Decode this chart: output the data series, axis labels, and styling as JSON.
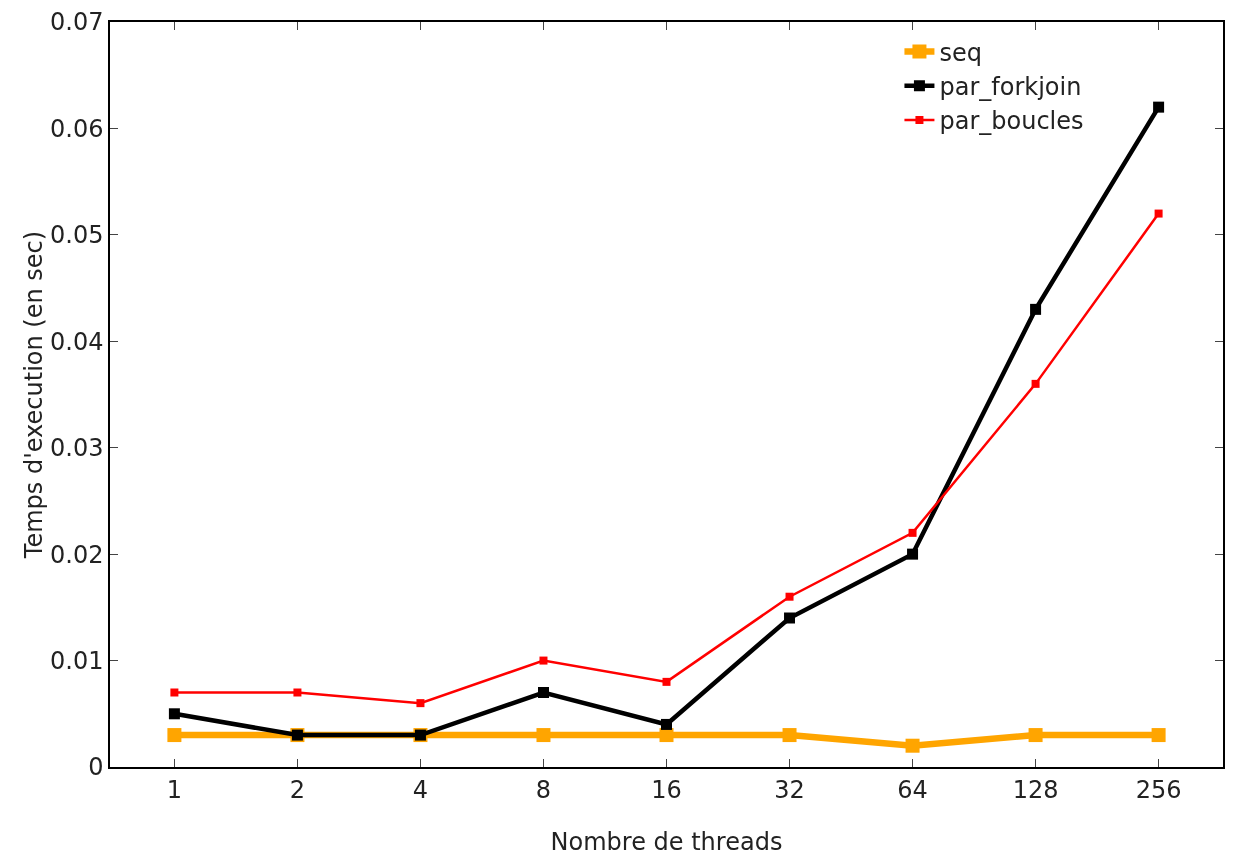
{
  "chart_data": {
    "type": "line",
    "xlabel": "Nombre de threads",
    "ylabel": "Temps d'execution (en sec)",
    "categories": [
      "1",
      "2",
      "4",
      "8",
      "16",
      "32",
      "64",
      "128",
      "256"
    ],
    "series": [
      {
        "name": "seq",
        "color": "#ffa500",
        "values": [
          0.003,
          0.003,
          0.003,
          0.003,
          0.003,
          0.003,
          0.002,
          0.003,
          0.003
        ]
      },
      {
        "name": "par_forkjoin",
        "color": "#000000",
        "values": [
          0.005,
          0.003,
          0.003,
          0.007,
          0.004,
          0.014,
          0.02,
          0.043,
          0.062
        ]
      },
      {
        "name": "par_boucles",
        "color": "#ff0000",
        "values": [
          0.007,
          0.007,
          0.006,
          0.01,
          0.008,
          0.016,
          0.022,
          0.036,
          0.052
        ]
      }
    ],
    "ylim": [
      0,
      0.07
    ],
    "yticks": [
      0,
      0.01,
      0.02,
      0.03,
      0.04,
      0.05,
      0.06,
      0.07
    ],
    "grid": false,
    "legend": "top right",
    "marker": "square",
    "line_style": "solid"
  }
}
